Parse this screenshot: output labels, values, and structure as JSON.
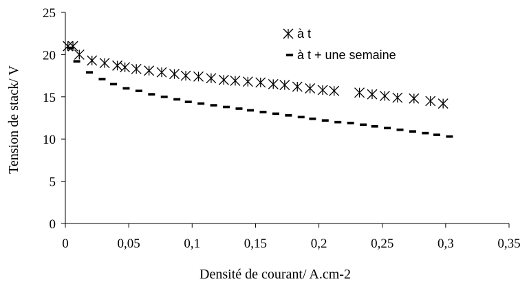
{
  "chart_data": {
    "type": "scatter",
    "title": "",
    "xlabel": "Densité de courant/ A.cm-2",
    "ylabel": "Tension de stack/ V",
    "xlim": [
      0,
      0.35
    ],
    "ylim": [
      0,
      25
    ],
    "x_ticks": [
      "0",
      "0,05",
      "0,1",
      "0,15",
      "0,2",
      "0,25",
      "0,3",
      "0,35"
    ],
    "y_ticks": [
      "0",
      "5",
      "10",
      "15",
      "20",
      "25"
    ],
    "grid": false,
    "legend_position": "top-right",
    "series": [
      {
        "name": "à t",
        "marker": "asterisk",
        "color": "#000000",
        "x": [
          0.002,
          0.006,
          0.011,
          0.021,
          0.031,
          0.041,
          0.047,
          0.056,
          0.066,
          0.076,
          0.086,
          0.095,
          0.105,
          0.115,
          0.125,
          0.134,
          0.144,
          0.154,
          0.164,
          0.173,
          0.183,
          0.193,
          0.203,
          0.212,
          0.232,
          0.242,
          0.252,
          0.262,
          0.275,
          0.288,
          0.298
        ],
        "y": [
          21.0,
          21.0,
          20.0,
          19.3,
          19.0,
          18.7,
          18.5,
          18.3,
          18.1,
          17.9,
          17.7,
          17.5,
          17.4,
          17.2,
          17.0,
          16.9,
          16.8,
          16.7,
          16.5,
          16.4,
          16.2,
          16.0,
          15.8,
          15.7,
          15.5,
          15.3,
          15.1,
          14.9,
          14.8,
          14.5,
          14.2
        ]
      },
      {
        "name": "à t + une semaine",
        "marker": "dash",
        "color": "#000000",
        "x": [
          0.004,
          0.009,
          0.019,
          0.029,
          0.038,
          0.048,
          0.058,
          0.068,
          0.078,
          0.088,
          0.097,
          0.107,
          0.117,
          0.127,
          0.137,
          0.146,
          0.156,
          0.166,
          0.176,
          0.186,
          0.195,
          0.205,
          0.215,
          0.225,
          0.235,
          0.244,
          0.254,
          0.264,
          0.274,
          0.284,
          0.293,
          0.303
        ],
        "y": [
          20.8,
          19.2,
          17.9,
          17.1,
          16.5,
          16.0,
          15.7,
          15.3,
          15.0,
          14.7,
          14.4,
          14.2,
          14.0,
          13.8,
          13.6,
          13.4,
          13.2,
          13.0,
          12.8,
          12.6,
          12.4,
          12.2,
          12.0,
          11.9,
          11.7,
          11.5,
          11.3,
          11.1,
          10.9,
          10.7,
          10.5,
          10.3
        ]
      }
    ]
  }
}
